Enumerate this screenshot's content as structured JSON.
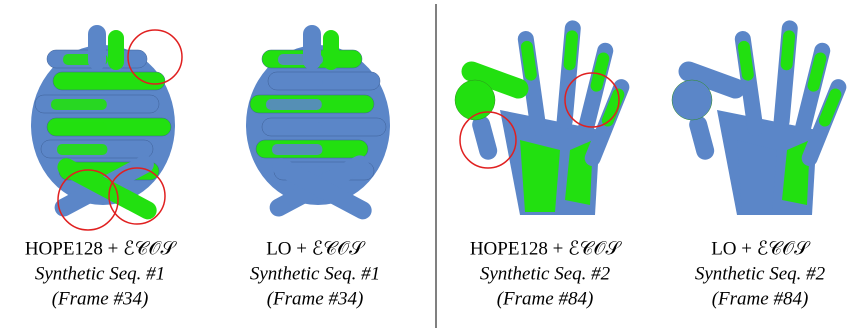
{
  "panels": [
    {
      "method": "HOPE128 + ℰ𝒞𝒪𝒮",
      "sequence": "Synthetic Seq. #1",
      "frame": "(Frame #34)"
    },
    {
      "method": "LO + ℰ𝒞𝒪𝒮",
      "sequence": "Synthetic Seq. #1",
      "frame": "(Frame #34)"
    },
    {
      "method": "HOPE128 + ℰ𝒞𝒪𝒮",
      "sequence": "Synthetic Seq. #2",
      "frame": "(Frame #84)"
    },
    {
      "method": "LO + ℰ𝒞𝒪𝒮",
      "sequence": "Synthetic Seq. #2",
      "frame": "(Frame #84)"
    }
  ]
}
